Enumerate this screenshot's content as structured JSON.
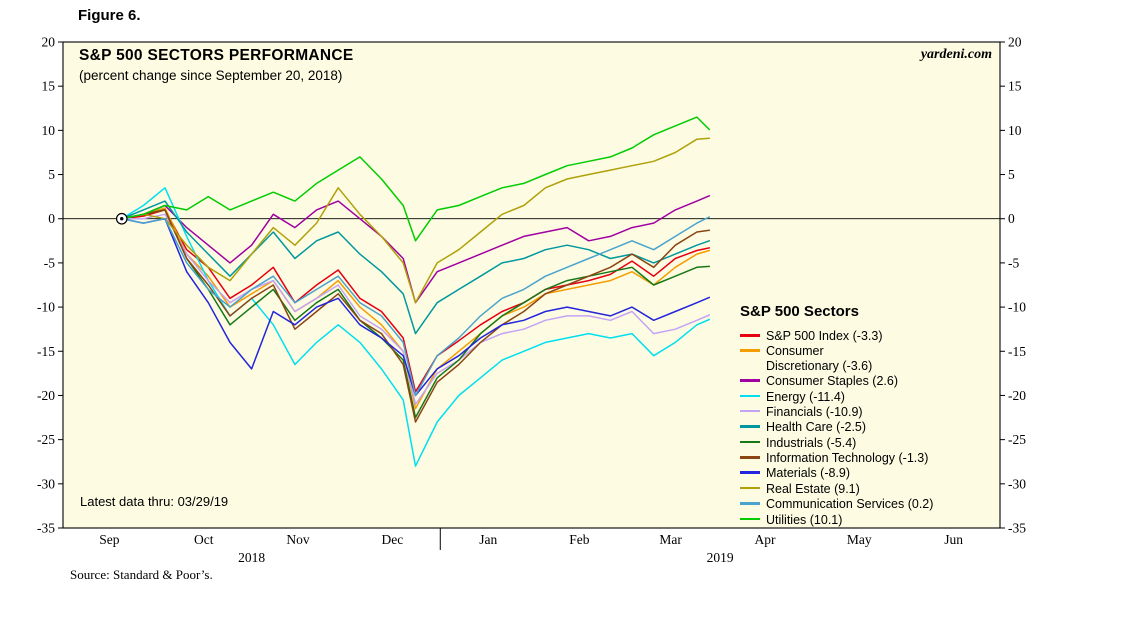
{
  "figure_label": "Figure 6.",
  "chart": {
    "title": "S&P 500 SECTORS PERFORMANCE",
    "subtitle": "(percent change since September 20, 2018)",
    "brand": "yardeni.com",
    "legend_title": "S&P 500 Sectors",
    "note": "Latest data thru: 03/29/19",
    "source": "Source: Standard & Poor’s."
  },
  "chart_data": {
    "type": "line",
    "title": "S&P 500 SECTORS PERFORMANCE",
    "subtitle": "(percent change since September 20, 2018)",
    "ylabel": "percent change since September 20, 2018",
    "ylim": [
      -35,
      20
    ],
    "y_ticks": [
      20,
      15,
      10,
      5,
      0,
      -5,
      -10,
      -15,
      -20,
      -25,
      -30,
      -35
    ],
    "grid": false,
    "legend_position": "inside-right",
    "plot_bg": "#fdfce3",
    "axis_color": "#000000",
    "zero_line": 0,
    "start_marker": {
      "day": 19,
      "value": 0
    },
    "x_axis": {
      "unit": "days since Sep 1, 2018",
      "month_labels": [
        "Sep",
        "Oct",
        "Nov",
        "Dec",
        "Jan",
        "Feb",
        "Mar",
        "Apr",
        "May",
        "Jun"
      ],
      "month_starts": [
        0,
        30,
        61,
        91,
        122,
        153,
        181,
        212,
        242,
        273,
        303
      ],
      "year_labels": [
        {
          "label": "2018",
          "start_day": 0,
          "end_day": 122
        },
        {
          "label": "2019",
          "start_day": 122,
          "end_day": 303
        }
      ],
      "year_divider_day": 122
    },
    "x_days": [
      19,
      26,
      33,
      40,
      47,
      54,
      61,
      68,
      75,
      82,
      89,
      96,
      103,
      110,
      114,
      121,
      128,
      135,
      142,
      149,
      156,
      163,
      170,
      177,
      184,
      191,
      198,
      205,
      209
    ],
    "series": [
      {
        "name": "S&P 500 Index",
        "label": "S&P 500 Index (-3.3)",
        "end_value": -3.3,
        "color": "#e60012",
        "values": [
          0,
          0.3,
          1.0,
          -3.5,
          -5.5,
          -9.0,
          -7.5,
          -5.5,
          -9.5,
          -7.5,
          -5.8,
          -9.0,
          -10.5,
          -13.5,
          -19.6,
          -15.5,
          -13.8,
          -12.0,
          -10.5,
          -9.5,
          -8.0,
          -7.5,
          -7.0,
          -6.3,
          -4.8,
          -6.5,
          -4.5,
          -3.6,
          -3.3
        ]
      },
      {
        "name": "Consumer Discretionary",
        "label": "Consumer\nDiscretionary (-3.6)",
        "end_value": -3.6,
        "color": "#f59c00",
        "values": [
          0,
          0.5,
          1.2,
          -4.0,
          -6.5,
          -10.0,
          -8.5,
          -7.0,
          -10.5,
          -9.0,
          -7.0,
          -10.0,
          -12.0,
          -15.0,
          -21.5,
          -17.0,
          -15.0,
          -13.0,
          -11.0,
          -10.0,
          -8.5,
          -8.0,
          -7.5,
          -7.0,
          -6.0,
          -7.5,
          -5.5,
          -4.0,
          -3.6
        ]
      },
      {
        "name": "Consumer Staples",
        "label": "Consumer Staples (2.6)",
        "end_value": 2.6,
        "color": "#a100a1",
        "values": [
          0,
          0.5,
          1.5,
          -1.0,
          -3.0,
          -5.0,
          -3.0,
          0.5,
          -1.0,
          1.0,
          2.0,
          0.0,
          -2.0,
          -4.5,
          -9.5,
          -6.0,
          -5.0,
          -4.0,
          -3.0,
          -2.0,
          -1.5,
          -1.0,
          -2.5,
          -2.0,
          -1.0,
          -0.5,
          1.0,
          2.0,
          2.6
        ]
      },
      {
        "name": "Energy",
        "label": "Energy (-11.4)",
        "end_value": -11.4,
        "color": "#00dff0",
        "values": [
          0,
          1.5,
          3.5,
          -2.0,
          -7.0,
          -11.0,
          -9.0,
          -12.0,
          -16.5,
          -14.0,
          -12.0,
          -14.0,
          -17.0,
          -20.5,
          -28.0,
          -23.0,
          -20.0,
          -18.0,
          -16.0,
          -15.0,
          -14.0,
          -13.5,
          -13.0,
          -13.5,
          -13.0,
          -15.5,
          -14.0,
          -12.0,
          -11.4
        ]
      },
      {
        "name": "Financials",
        "label": "Financials (-10.9)",
        "end_value": -10.9,
        "color": "#c4a3f5",
        "values": [
          0,
          0.0,
          0.5,
          -4.0,
          -7.0,
          -9.5,
          -8.0,
          -7.0,
          -10.5,
          -9.0,
          -7.5,
          -11.0,
          -12.5,
          -15.0,
          -21.0,
          -17.5,
          -16.0,
          -14.0,
          -13.0,
          -12.5,
          -11.5,
          -11.0,
          -11.0,
          -11.5,
          -10.5,
          -13.0,
          -12.5,
          -11.5,
          -10.9
        ]
      },
      {
        "name": "Health Care",
        "label": "Health Care (-2.5)",
        "end_value": -2.5,
        "color": "#00979e",
        "values": [
          0,
          1.0,
          2.0,
          -1.5,
          -4.0,
          -6.5,
          -4.0,
          -1.5,
          -4.5,
          -2.5,
          -1.5,
          -4.0,
          -6.0,
          -8.5,
          -13.0,
          -9.5,
          -8.0,
          -6.5,
          -5.0,
          -4.5,
          -3.5,
          -3.0,
          -3.5,
          -4.5,
          -4.0,
          -5.0,
          -4.0,
          -3.0,
          -2.5
        ]
      },
      {
        "name": "Industrials",
        "label": "Industrials (-5.4)",
        "end_value": -5.4,
        "color": "#177817",
        "values": [
          0,
          0.5,
          1.0,
          -4.5,
          -8.0,
          -12.0,
          -10.0,
          -8.0,
          -11.5,
          -9.5,
          -8.0,
          -11.5,
          -13.5,
          -16.0,
          -22.5,
          -18.0,
          -16.0,
          -13.0,
          -11.0,
          -9.5,
          -8.0,
          -7.0,
          -6.5,
          -6.0,
          -5.5,
          -7.5,
          -6.5,
          -5.5,
          -5.4
        ]
      },
      {
        "name": "Information Technology",
        "label": "Information Technology (-1.3)",
        "end_value": -1.3,
        "color": "#8b4513",
        "values": [
          0,
          0.5,
          1.0,
          -4.5,
          -7.5,
          -11.0,
          -9.0,
          -7.5,
          -12.5,
          -10.5,
          -8.5,
          -11.5,
          -13.0,
          -16.5,
          -23.0,
          -18.5,
          -16.5,
          -14.0,
          -12.0,
          -10.5,
          -8.5,
          -7.5,
          -6.5,
          -5.5,
          -4.0,
          -5.5,
          -3.0,
          -1.5,
          -1.3
        ]
      },
      {
        "name": "Materials",
        "label": "Materials (-8.9)",
        "end_value": -8.9,
        "color": "#2424dc",
        "values": [
          0,
          -0.5,
          0.0,
          -6.0,
          -9.5,
          -14.0,
          -17.0,
          -10.5,
          -12.0,
          -10.0,
          -9.0,
          -12.0,
          -13.5,
          -15.5,
          -20.0,
          -17.0,
          -15.5,
          -13.5,
          -12.0,
          -11.5,
          -10.5,
          -10.0,
          -10.5,
          -11.0,
          -10.0,
          -11.5,
          -10.5,
          -9.5,
          -8.9
        ]
      },
      {
        "name": "Real Estate",
        "label": "Real Estate (9.1)",
        "end_value": 9.1,
        "color": "#b0a00a",
        "values": [
          0,
          0.5,
          0.0,
          -3.0,
          -5.5,
          -7.0,
          -4.0,
          -1.0,
          -3.0,
          -0.5,
          3.5,
          0.5,
          -2.0,
          -5.0,
          -9.5,
          -5.0,
          -3.5,
          -1.5,
          0.5,
          1.5,
          3.5,
          4.5,
          5.0,
          5.5,
          6.0,
          6.5,
          7.5,
          9.0,
          9.1
        ]
      },
      {
        "name": "Communication Services",
        "label": "Communication Services (0.2)",
        "end_value": 0.2,
        "color": "#4aa3cc",
        "values": [
          0,
          -0.5,
          0.0,
          -5.0,
          -8.0,
          -10.0,
          -8.0,
          -6.5,
          -9.5,
          -8.0,
          -6.5,
          -9.5,
          -11.0,
          -14.0,
          -20.0,
          -15.5,
          -13.5,
          -11.0,
          -9.0,
          -8.0,
          -6.5,
          -5.5,
          -4.5,
          -3.5,
          -2.5,
          -3.5,
          -2.0,
          -0.5,
          0.2
        ]
      },
      {
        "name": "Utilities",
        "label": "Utilities (10.1)",
        "end_value": 10.1,
        "color": "#00cc00",
        "values": [
          0,
          0.5,
          1.5,
          1.0,
          2.5,
          1.0,
          2.0,
          3.0,
          2.0,
          4.0,
          5.5,
          7.0,
          4.5,
          1.5,
          -2.5,
          1.0,
          1.5,
          2.5,
          3.5,
          4.0,
          5.0,
          6.0,
          6.5,
          7.0,
          8.0,
          9.5,
          10.5,
          11.5,
          10.1
        ]
      }
    ]
  }
}
